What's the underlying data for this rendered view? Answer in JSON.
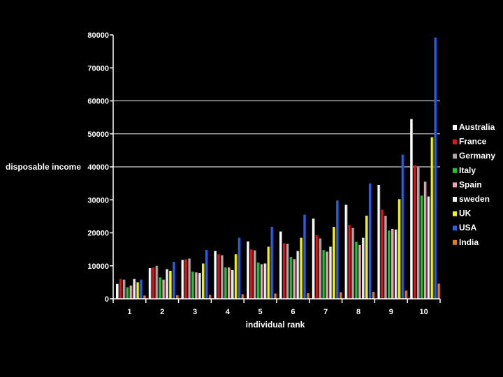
{
  "chart_data": {
    "type": "bar",
    "title": "",
    "xlabel": "individual rank",
    "ylabel": "disposable income",
    "ylim": [
      0,
      80000
    ],
    "yticks": [
      0,
      10000,
      20000,
      30000,
      40000,
      50000,
      60000,
      70000,
      80000
    ],
    "grid_lines_at": [
      40000,
      50000,
      60000
    ],
    "legend_position": "right",
    "categories": [
      "1",
      "2",
      "3",
      "4",
      "5",
      "6",
      "7",
      "8",
      "9",
      "10"
    ],
    "series": [
      {
        "name": "Australia",
        "color": "#ffffff",
        "values": [
          4500,
          9300,
          11800,
          14500,
          17400,
          20400,
          24300,
          28500,
          34500,
          54500
        ]
      },
      {
        "name": "France",
        "color": "#d81818",
        "values": [
          6000,
          9500,
          12000,
          13500,
          15000,
          16800,
          19300,
          22400,
          27000,
          40500
        ]
      },
      {
        "name": "Germany",
        "color": "#a8a8a8",
        "values": [
          5800,
          10000,
          12200,
          13200,
          14700,
          16700,
          18300,
          21500,
          25200,
          39800
        ]
      },
      {
        "name": "Italy",
        "color": "#22c432",
        "values": [
          3500,
          6500,
          8200,
          9500,
          11000,
          12700,
          14800,
          17300,
          20700,
          31300
        ]
      },
      {
        "name": "Spain",
        "color": "#f0a0b4",
        "values": [
          4000,
          5800,
          8000,
          9500,
          10500,
          12000,
          14300,
          16300,
          21200,
          35500
        ]
      },
      {
        "name": "sweden",
        "color": "#e6f0f0",
        "values": [
          6000,
          9000,
          7800,
          8700,
          10700,
          14500,
          15800,
          18500,
          21000,
          31000
        ]
      },
      {
        "name": "UK",
        "color": "#f2f21e",
        "values": [
          5000,
          8500,
          10700,
          13500,
          15800,
          18500,
          21800,
          25200,
          30200,
          49000
        ]
      },
      {
        "name": "USA",
        "color": "#2a5ee8",
        "values": [
          5800,
          11200,
          14800,
          18500,
          21800,
          25500,
          29800,
          35000,
          43700,
          79200
        ]
      },
      {
        "name": "India",
        "color": "#e07a1e",
        "values": [
          1000,
          1100,
          1200,
          1400,
          1600,
          1700,
          2000,
          2100,
          2500,
          4600
        ]
      }
    ]
  }
}
